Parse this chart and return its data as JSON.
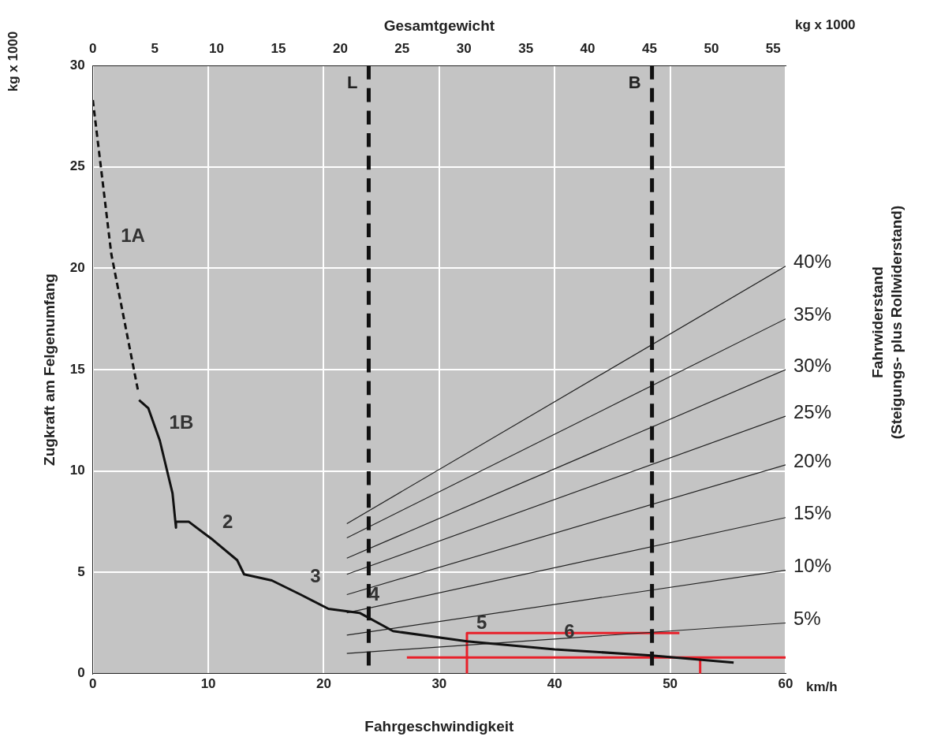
{
  "chart_data": {
    "type": "line",
    "x2label": "Gesamtgewicht",
    "xlabel": "Fahrgeschwindigkeit",
    "ylabel": "Zugkraft am Felgenumfang",
    "xlim": [
      0,
      60
    ],
    "xticks": [
      0,
      10,
      20,
      30,
      40,
      50,
      60
    ],
    "x2lim": [
      0,
      56
    ],
    "x2ticks": [
      0,
      5,
      10,
      15,
      20,
      25,
      30,
      35,
      40,
      45,
      50,
      55
    ],
    "ylim": [
      0,
      30
    ],
    "yticks": [
      0,
      5,
      10,
      15,
      20,
      25,
      30
    ],
    "grid": true,
    "legend": false,
    "marker": "none",
    "series": [
      {
        "color": "#111111",
        "line_style": "dashed",
        "x": [
          0,
          1.6,
          3.9
        ],
        "values": [
          28.3,
          20.7,
          14.0
        ]
      },
      {
        "color": "#111111",
        "line_style": "solid",
        "x": [
          4.0,
          4.8,
          5.8,
          6.9,
          7.2,
          7.2,
          8.3,
          10.4,
          12.5,
          13.1,
          15.5,
          18,
          20.4,
          23.1,
          26,
          32.4,
          40,
          48.4,
          55.5
        ],
        "values": [
          13.5,
          13.1,
          11.5,
          8.9,
          7.2,
          7.5,
          7.5,
          6.6,
          5.6,
          4.9,
          4.6,
          3.9,
          3.2,
          3.0,
          2.1,
          1.6,
          1.2,
          0.9,
          0.55
        ]
      },
      {
        "name": "40%",
        "color": "#222222",
        "x": [
          22,
          60
        ],
        "values": [
          7.4,
          20.1
        ]
      },
      {
        "name": "35%",
        "color": "#222222",
        "x": [
          22,
          60
        ],
        "values": [
          6.7,
          17.5
        ]
      },
      {
        "name": "30%",
        "color": "#222222",
        "x": [
          22,
          60
        ],
        "values": [
          5.7,
          15.0
        ]
      },
      {
        "name": "25%",
        "color": "#222222",
        "x": [
          22,
          60
        ],
        "values": [
          4.9,
          12.7
        ]
      },
      {
        "name": "20%",
        "color": "#222222",
        "x": [
          22,
          60
        ],
        "values": [
          3.9,
          10.3
        ]
      },
      {
        "name": "15%",
        "color": "#222222",
        "x": [
          22,
          60
        ],
        "values": [
          3.0,
          7.7
        ]
      },
      {
        "name": "10%",
        "color": "#222222",
        "x": [
          22,
          60
        ],
        "values": [
          1.9,
          5.1
        ]
      },
      {
        "name": "5%",
        "color": "#222222",
        "x": [
          22,
          60
        ],
        "values": [
          1.0,
          2.5
        ]
      },
      {
        "color": "#e8202a",
        "x": [
          32.4,
          32.4,
          50.8
        ],
        "values": [
          0,
          2.0,
          2.0
        ]
      },
      {
        "color": "#e8202a",
        "x": [
          27.2,
          60
        ],
        "values": [
          0.8,
          0.8
        ]
      },
      {
        "color": "#e8202a",
        "x": [
          52.6,
          52.6
        ],
        "values": [
          0,
          0.8
        ]
      }
    ],
    "ref_lines": [
      {
        "axis": "x2",
        "value": 22.3,
        "label": "L",
        "color": "#111111",
        "line_style": "dashed"
      },
      {
        "axis": "x2",
        "value": 45.2,
        "label": "B",
        "color": "#111111",
        "line_style": "dashed"
      }
    ],
    "annotations": [
      "kg x 1000",
      "kg x 1000",
      "km/h",
      "Fahrwiderstand\n(Steigungs- plus Rollwiderstand)",
      {
        "text": "1A",
        "x": 1.6,
        "y": 20.7
      },
      {
        "text": "1B",
        "x": 5.8,
        "y": 11.5
      },
      {
        "text": "2",
        "x": 10.4,
        "y": 6.6
      },
      {
        "text": "3",
        "x": 18,
        "y": 3.9
      },
      {
        "text": "4",
        "x": 23.1,
        "y": 3.0
      },
      {
        "text": "5",
        "x": 32.4,
        "y": 1.6
      },
      {
        "text": "6",
        "x": 40,
        "y": 1.2
      }
    ]
  }
}
